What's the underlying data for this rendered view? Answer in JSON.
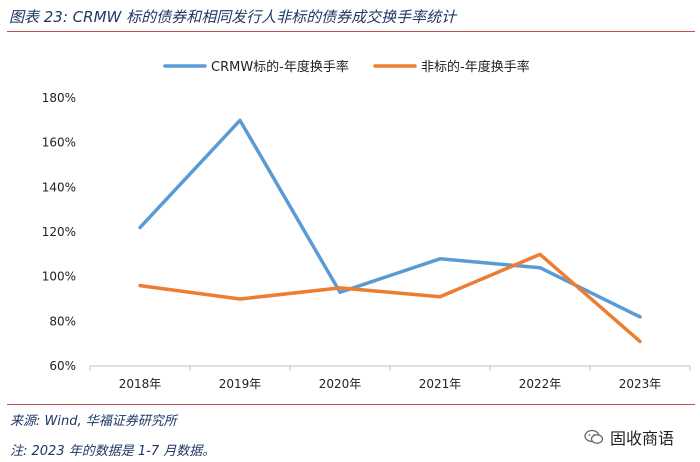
{
  "header": {
    "title": "图表 23: CRMW 标的债券和相同发行人非标的债券成交换手率统计"
  },
  "chart_data": {
    "type": "line",
    "title": "",
    "xlabel": "",
    "ylabel": "",
    "categories": [
      "2018年",
      "2019年",
      "2020年",
      "2021年",
      "2022年",
      "2023年"
    ],
    "y_ticks": [
      "60%",
      "80%",
      "100%",
      "120%",
      "140%",
      "160%",
      "180%"
    ],
    "ylim": [
      60,
      180
    ],
    "y_unit": "%",
    "grid": false,
    "legend_position": "top",
    "series": [
      {
        "name": "CRMW标的-年度换手率",
        "color": "#5b9bd5",
        "values": [
          122,
          170,
          93,
          108,
          104,
          82
        ]
      },
      {
        "name": "非标的-年度换手率",
        "color": "#ed7d31",
        "values": [
          96,
          90,
          95,
          91,
          110,
          71
        ]
      }
    ]
  },
  "footer": {
    "source": "来源: Wind, 华福证券研究所",
    "note": "注: 2023 年的数据是 1-7 月数据。",
    "watermark": "固收商语",
    "watermark_icon": "wechat-icon"
  }
}
